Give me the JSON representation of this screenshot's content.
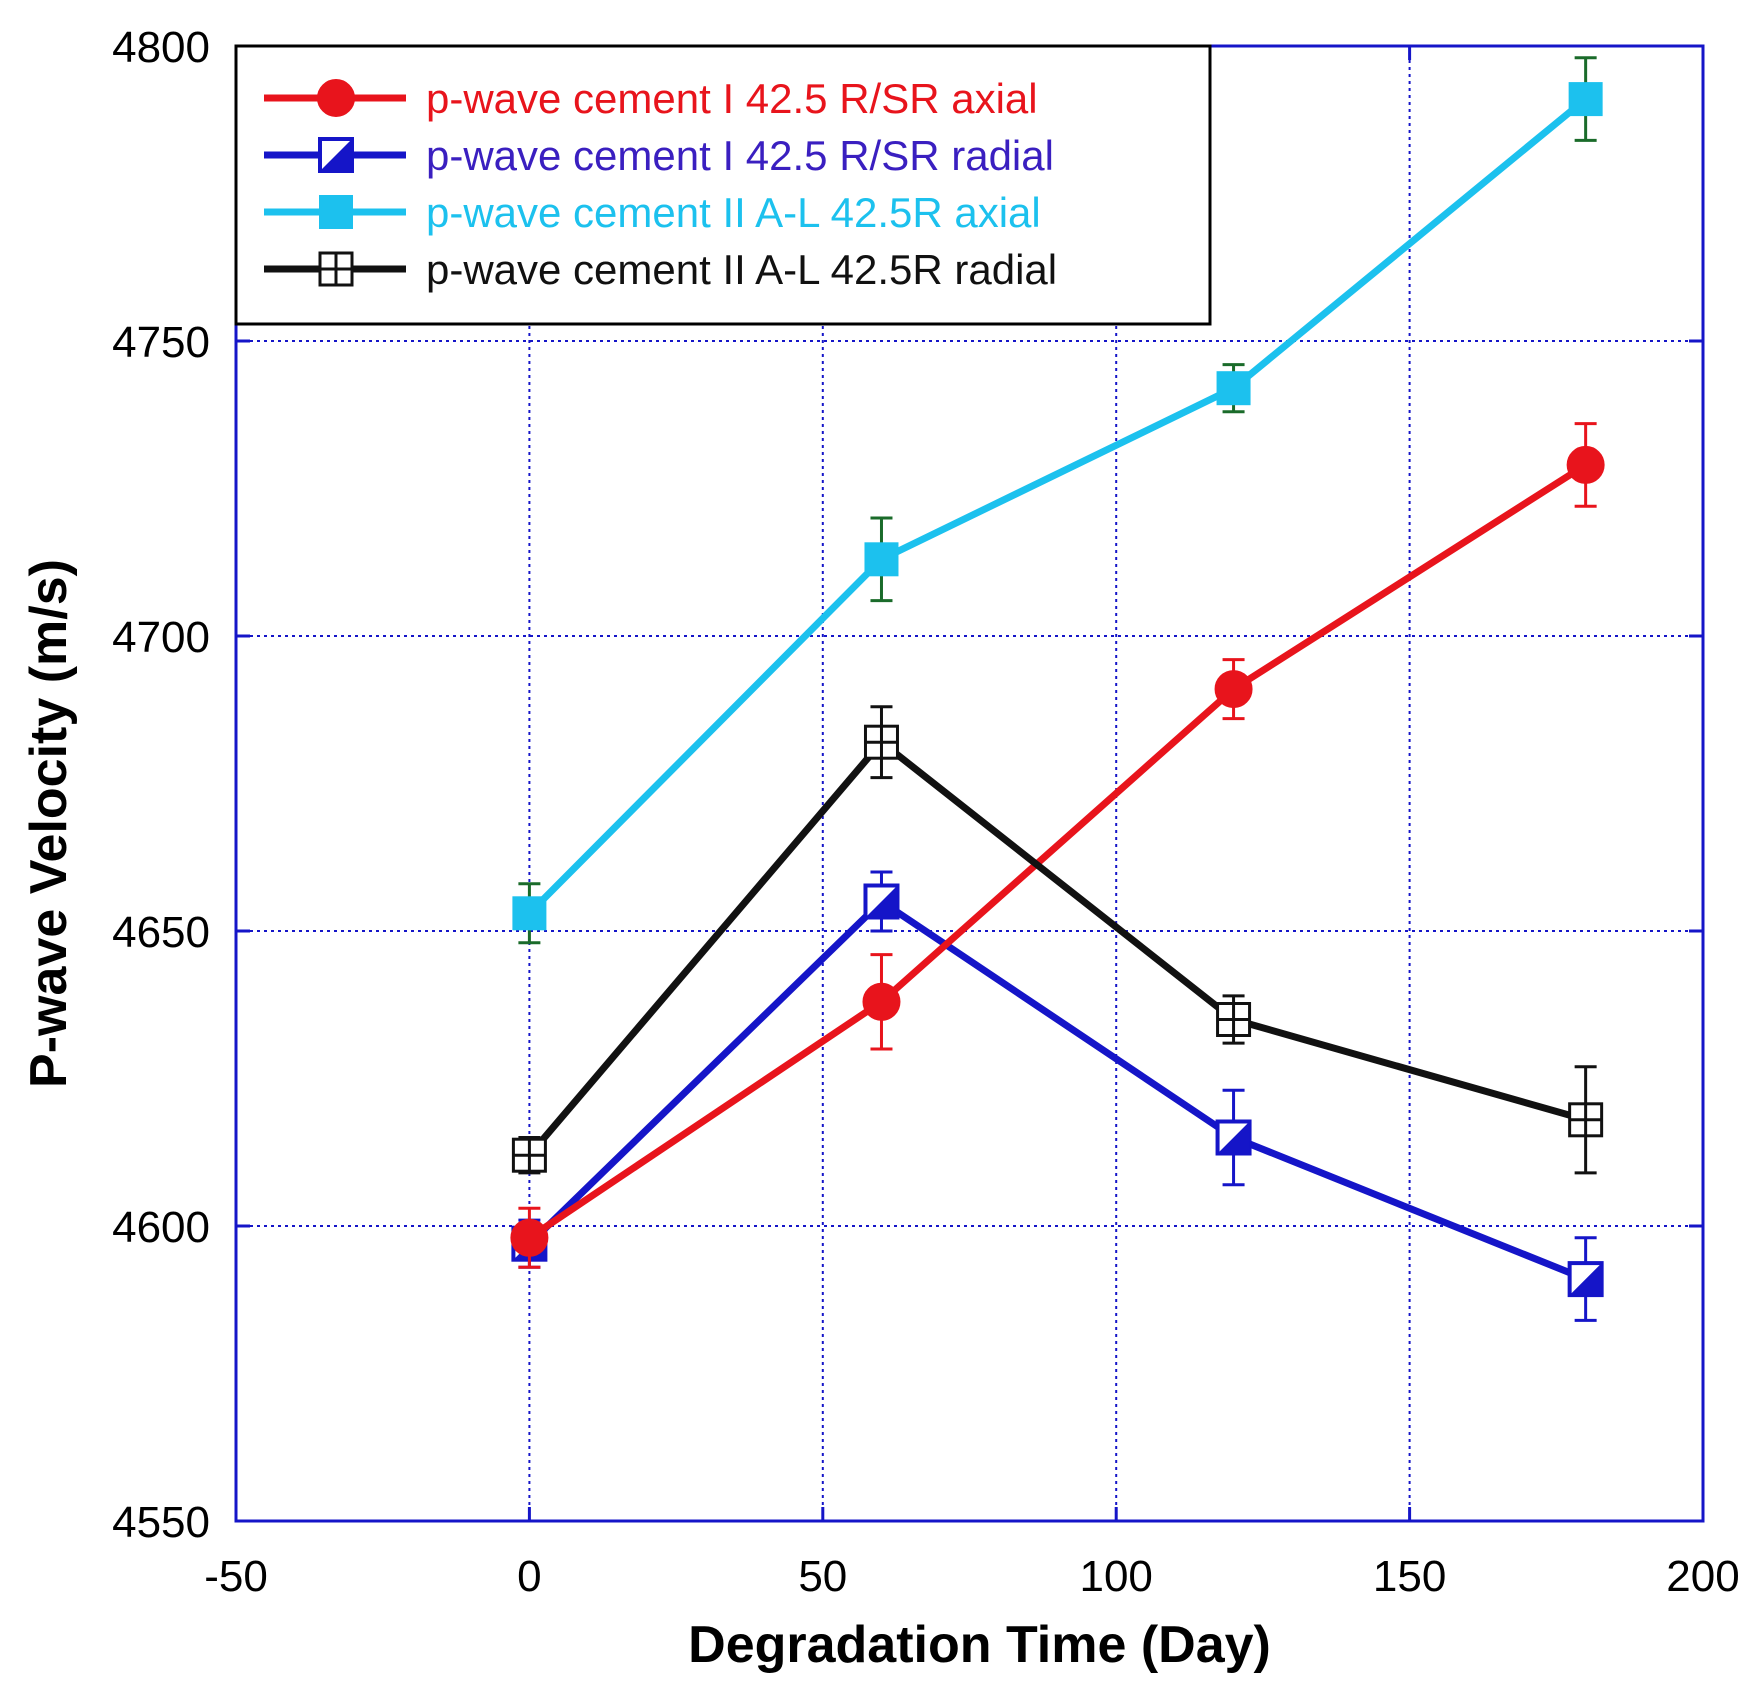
{
  "chart_data": {
    "type": "line",
    "title": "",
    "xlabel": "Degradation Time (Day)",
    "ylabel": "P-wave Velocity (m/s)",
    "xlim": [
      -50,
      200
    ],
    "ylim": [
      4550,
      4800
    ],
    "x_ticks": [
      -50,
      0,
      50,
      100,
      150,
      200
    ],
    "y_ticks": [
      4550,
      4600,
      4650,
      4700,
      4750,
      4800
    ],
    "grid": true,
    "legend_position": "top-left",
    "series": [
      {
        "name": "p-wave cement I 42.5 R/SR axial",
        "color": "#e8141c",
        "text_color": "#e8141c",
        "error_color": "#e8141c",
        "marker": "filled-circle",
        "x": [
          0,
          60,
          120,
          180
        ],
        "y": [
          4598,
          4638,
          4691,
          4729
        ],
        "error": [
          5,
          8,
          5,
          7
        ]
      },
      {
        "name": "p-wave cement I 42.5 R/SR radial",
        "color": "#1515c8",
        "text_color": "#3a1fc0",
        "error_color": "#1515c8",
        "marker": "half-filled-square",
        "x": [
          0,
          60,
          120,
          180
        ],
        "y": [
          4597,
          4655,
          4615,
          4591
        ],
        "error": [
          4,
          5,
          8,
          7
        ]
      },
      {
        "name": "p-wave cement II  A-L 42.5R axial",
        "color": "#1cc1ee",
        "text_color": "#1cc1ee",
        "error_color": "#1a6b2a",
        "marker": "filled-square",
        "x": [
          0,
          60,
          120,
          180
        ],
        "y": [
          4653,
          4713,
          4742,
          4791
        ],
        "error": [
          5,
          7,
          4,
          7
        ]
      },
      {
        "name": "p-wave cement II  A-L 42.5R radial",
        "color": "#111111",
        "text_color": "#111111",
        "error_color": "#111111",
        "marker": "crossed-square",
        "x": [
          0,
          60,
          120,
          180
        ],
        "y": [
          4612,
          4682,
          4635,
          4618
        ],
        "error": [
          3,
          6,
          4,
          9
        ]
      }
    ]
  },
  "colors": {
    "frame": "#1515c8",
    "grid": "#1515c8",
    "legend_border": "#000000"
  }
}
